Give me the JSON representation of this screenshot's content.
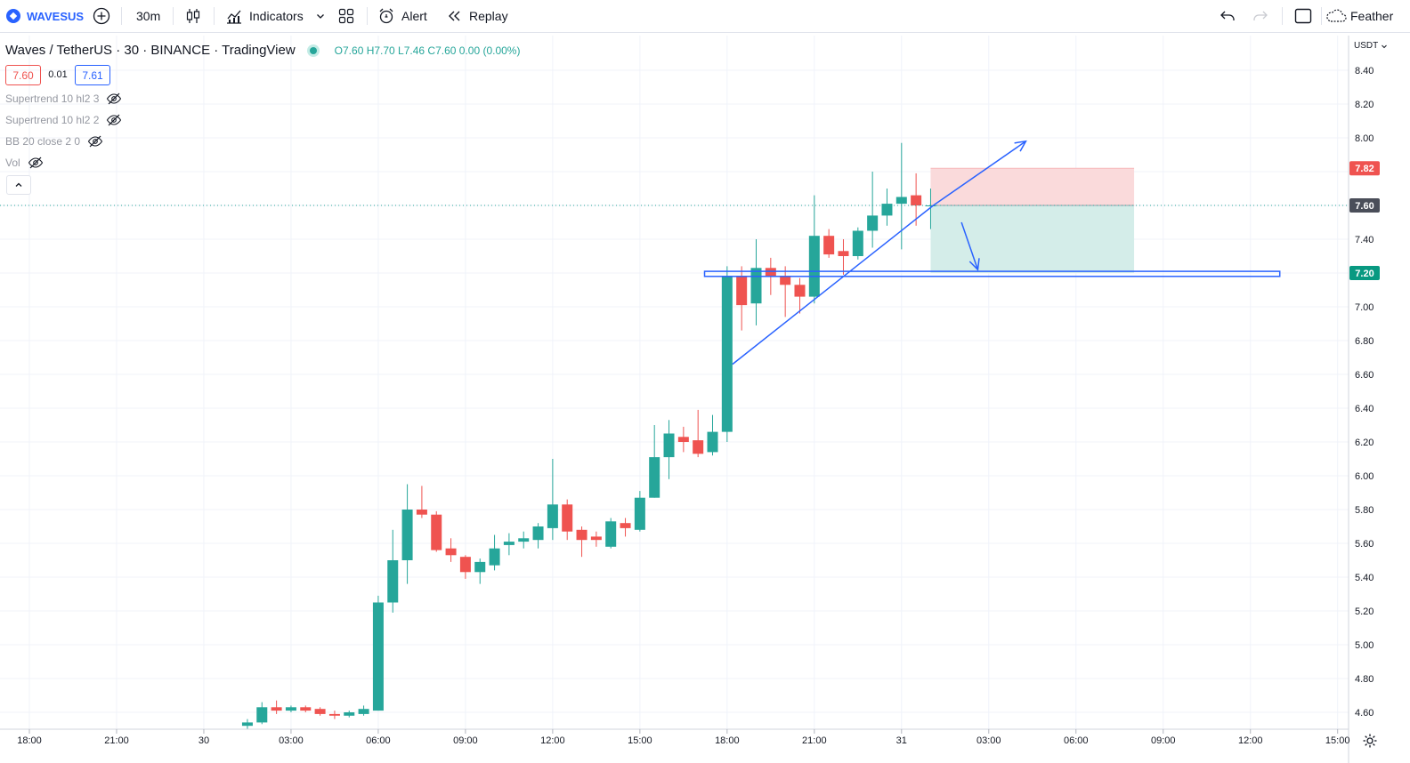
{
  "toolbar": {
    "symbol": "WAVESUS",
    "interval": "30m",
    "indicators_label": "Indicators",
    "alert_label": "Alert",
    "replay_label": "Replay",
    "layout_name": "Feather"
  },
  "legend": {
    "title": "Waves / TetherUS · 30 · BINANCE · TradingView",
    "ohlc": "O7.60 H7.70 L7.46 C7.60 0.00 (0.00%)",
    "sell_price": "7.60",
    "spread": "0.01",
    "buy_price": "7.61",
    "indicators": [
      "Supertrend 10 hl2 3",
      "Supertrend 10 hl2 2",
      "BB 20 close 2 0",
      "Vol"
    ]
  },
  "colors": {
    "up": "#26a69a",
    "down": "#ef5350",
    "drawing": "#2962ff",
    "target_zone": "#d4ede9",
    "stop_zone": "#fadadb"
  },
  "chart_data": {
    "type": "candlestick",
    "currency": "USDT",
    "ylim": [
      4.5,
      8.5
    ],
    "y_ticks": [
      "8.40",
      "8.20",
      "8.00",
      "7.80",
      "7.60",
      "7.40",
      "7.20",
      "7.00",
      "6.80",
      "6.60",
      "6.40",
      "6.20",
      "6.00",
      "5.80",
      "5.60",
      "5.40",
      "5.20",
      "5.00",
      "4.80",
      "4.60"
    ],
    "x_ticks": [
      "18:00",
      "21:00",
      "30",
      "03:00",
      "06:00",
      "09:00",
      "12:00",
      "15:00",
      "18:00",
      "21:00",
      "31",
      "03:00",
      "06:00",
      "09:00",
      "12:00",
      "15:00"
    ],
    "price_labels": [
      {
        "value": "7.82",
        "color": "#ef5350"
      },
      {
        "value": "7.60",
        "color": "#4a4e59"
      },
      {
        "value": "7.20",
        "color": "#089981"
      }
    ],
    "candles": [
      {
        "t": "01:30",
        "o": 4.52,
        "h": 4.56,
        "l": 4.5,
        "c": 4.54
      },
      {
        "t": "02:00",
        "o": 4.54,
        "h": 4.66,
        "l": 4.53,
        "c": 4.63
      },
      {
        "t": "02:30",
        "o": 4.63,
        "h": 4.67,
        "l": 4.59,
        "c": 4.61
      },
      {
        "t": "03:00",
        "o": 4.61,
        "h": 4.64,
        "l": 4.6,
        "c": 4.63
      },
      {
        "t": "03:30",
        "o": 4.63,
        "h": 4.64,
        "l": 4.6,
        "c": 4.61
      },
      {
        "t": "04:00",
        "o": 4.62,
        "h": 4.63,
        "l": 4.58,
        "c": 4.59
      },
      {
        "t": "04:30",
        "o": 4.59,
        "h": 4.61,
        "l": 4.56,
        "c": 4.58
      },
      {
        "t": "05:00",
        "o": 4.58,
        "h": 4.61,
        "l": 4.57,
        "c": 4.6
      },
      {
        "t": "05:30",
        "o": 4.59,
        "h": 4.64,
        "l": 4.58,
        "c": 4.62
      },
      {
        "t": "06:00",
        "o": 4.61,
        "h": 5.29,
        "l": 4.61,
        "c": 5.25
      },
      {
        "t": "06:30",
        "o": 5.25,
        "h": 5.68,
        "l": 5.19,
        "c": 5.5
      },
      {
        "t": "07:00",
        "o": 5.5,
        "h": 5.95,
        "l": 5.36,
        "c": 5.8
      },
      {
        "t": "07:30",
        "o": 5.8,
        "h": 5.94,
        "l": 5.75,
        "c": 5.77
      },
      {
        "t": "08:00",
        "o": 5.77,
        "h": 5.79,
        "l": 5.55,
        "c": 5.56
      },
      {
        "t": "08:30",
        "o": 5.57,
        "h": 5.63,
        "l": 5.49,
        "c": 5.53
      },
      {
        "t": "09:00",
        "o": 5.52,
        "h": 5.53,
        "l": 5.39,
        "c": 5.43
      },
      {
        "t": "09:30",
        "o": 5.43,
        "h": 5.51,
        "l": 5.36,
        "c": 5.49
      },
      {
        "t": "10:00",
        "o": 5.47,
        "h": 5.65,
        "l": 5.44,
        "c": 5.57
      },
      {
        "t": "10:30",
        "o": 5.59,
        "h": 5.66,
        "l": 5.53,
        "c": 5.61
      },
      {
        "t": "11:00",
        "o": 5.61,
        "h": 5.67,
        "l": 5.57,
        "c": 5.63
      },
      {
        "t": "11:30",
        "o": 5.62,
        "h": 5.72,
        "l": 5.57,
        "c": 5.7
      },
      {
        "t": "12:00",
        "o": 5.69,
        "h": 6.1,
        "l": 5.62,
        "c": 5.83
      },
      {
        "t": "12:30",
        "o": 5.83,
        "h": 5.86,
        "l": 5.62,
        "c": 5.67
      },
      {
        "t": "13:00",
        "o": 5.68,
        "h": 5.7,
        "l": 5.52,
        "c": 5.62
      },
      {
        "t": "13:30",
        "o": 5.64,
        "h": 5.67,
        "l": 5.58,
        "c": 5.62
      },
      {
        "t": "14:00",
        "o": 5.58,
        "h": 5.75,
        "l": 5.57,
        "c": 5.73
      },
      {
        "t": "14:30",
        "o": 5.72,
        "h": 5.75,
        "l": 5.64,
        "c": 5.69
      },
      {
        "t": "15:00",
        "o": 5.68,
        "h": 5.91,
        "l": 5.67,
        "c": 5.87
      },
      {
        "t": "15:30",
        "o": 5.87,
        "h": 6.3,
        "l": 5.87,
        "c": 6.11
      },
      {
        "t": "16:00",
        "o": 6.11,
        "h": 6.33,
        "l": 5.98,
        "c": 6.25
      },
      {
        "t": "16:30",
        "o": 6.23,
        "h": 6.29,
        "l": 6.14,
        "c": 6.2
      },
      {
        "t": "17:00",
        "o": 6.21,
        "h": 6.39,
        "l": 6.11,
        "c": 6.13
      },
      {
        "t": "17:30",
        "o": 6.14,
        "h": 6.36,
        "l": 6.12,
        "c": 6.26
      },
      {
        "t": "18:00",
        "o": 6.26,
        "h": 7.24,
        "l": 6.2,
        "c": 7.18
      },
      {
        "t": "18:30",
        "o": 7.18,
        "h": 7.24,
        "l": 6.86,
        "c": 7.01
      },
      {
        "t": "19:00",
        "o": 7.02,
        "h": 7.4,
        "l": 6.89,
        "c": 7.23
      },
      {
        "t": "19:30",
        "o": 7.23,
        "h": 7.29,
        "l": 7.07,
        "c": 7.18
      },
      {
        "t": "20:00",
        "o": 7.18,
        "h": 7.24,
        "l": 6.94,
        "c": 7.13
      },
      {
        "t": "20:30",
        "o": 7.13,
        "h": 7.17,
        "l": 6.96,
        "c": 7.06
      },
      {
        "t": "21:00",
        "o": 7.06,
        "h": 7.66,
        "l": 7.02,
        "c": 7.42
      },
      {
        "t": "21:30",
        "o": 7.42,
        "h": 7.46,
        "l": 7.29,
        "c": 7.31
      },
      {
        "t": "22:00",
        "o": 7.33,
        "h": 7.4,
        "l": 7.19,
        "c": 7.3
      },
      {
        "t": "22:30",
        "o": 7.3,
        "h": 7.47,
        "l": 7.28,
        "c": 7.45
      },
      {
        "t": "23:00",
        "o": 7.45,
        "h": 7.8,
        "l": 7.35,
        "c": 7.54
      },
      {
        "t": "23:30",
        "o": 7.54,
        "h": 7.7,
        "l": 7.48,
        "c": 7.61
      },
      {
        "t": "00:00",
        "o": 7.61,
        "h": 7.97,
        "l": 7.34,
        "c": 7.65
      },
      {
        "t": "00:30",
        "o": 7.66,
        "h": 7.79,
        "l": 7.48,
        "c": 7.6
      },
      {
        "t": "01:00",
        "o": 7.6,
        "h": 7.7,
        "l": 7.46,
        "c": 7.6
      }
    ],
    "drawings": {
      "trend_line": {
        "from": [
          "18:00",
          6.66
        ],
        "to": [
          "01:00",
          7.6
        ]
      },
      "projection_up": {
        "from": [
          "01:00",
          7.6
        ],
        "to": [
          "04:00",
          7.98
        ]
      },
      "projection_down": {
        "from": [
          "02:00",
          7.5
        ],
        "to": [
          "02:30",
          7.22
        ]
      },
      "support_box": {
        "from": "17:30",
        "to": "12:00",
        "low": 7.18,
        "high": 7.21
      },
      "position_short": {
        "start": "01:00",
        "end": "08:00",
        "entry": 7.6,
        "stop": 7.82,
        "target": 7.2
      }
    }
  }
}
